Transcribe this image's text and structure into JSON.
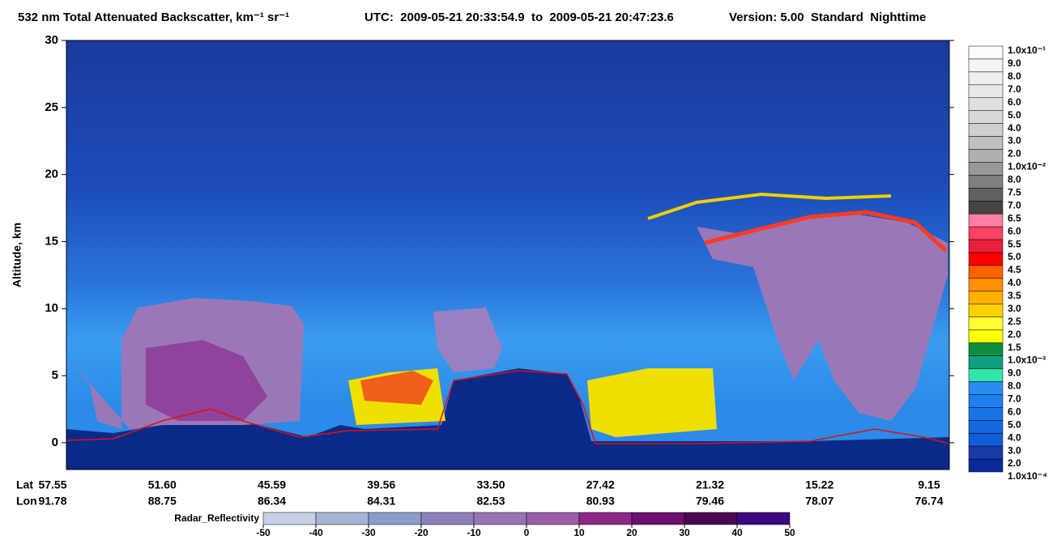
{
  "chart_data": {
    "type": "heatmap",
    "title": "532 nm Total Attenuated Backscatter, km⁻¹ sr⁻¹",
    "time_range": "UTC:  2009-05-21 20:33:54.9  to  2009-05-21 20:47:23.6",
    "version": "Version: 5.00  Standard  Nighttime",
    "ylabel": "Altitude, km",
    "ylim": [
      -2,
      30
    ],
    "yticks": [
      0,
      5,
      10,
      15,
      20,
      25,
      30
    ],
    "lat_label": "Lat",
    "lon_label": "Lon",
    "lat": [
      "57.55",
      "51.60",
      "45.59",
      "39.56",
      "33.50",
      "27.42",
      "21.32",
      "15.22",
      "9.15"
    ],
    "lon": [
      "91.78",
      "88.75",
      "86.34",
      "84.31",
      "82.53",
      "80.93",
      "79.46",
      "78.07",
      "76.74"
    ],
    "colorbar": {
      "labels": [
        "1.0x10⁻¹",
        "9.0",
        "8.0",
        "7.0",
        "6.0",
        "5.0",
        "4.0",
        "3.0",
        "2.0",
        "1.0x10⁻²",
        "8.0",
        "7.5",
        "7.0",
        "6.5",
        "6.0",
        "5.5",
        "5.0",
        "4.5",
        "4.0",
        "3.5",
        "3.0",
        "2.5",
        "2.0",
        "1.5",
        "1.0x10⁻³",
        "9.0",
        "8.0",
        "7.0",
        "6.0",
        "5.0",
        "4.0",
        "3.0",
        "2.0",
        "1.0x10⁻⁴"
      ],
      "colors": [
        "#fbfbfb",
        "#f4f4f4",
        "#eeeeee",
        "#e8e8e8",
        "#e0e0e0",
        "#d8d8d8",
        "#cfcfcf",
        "#c0c0c0",
        "#b0b0b0",
        "#989898",
        "#808080",
        "#606060",
        "#444444",
        "#ff80a0",
        "#ff4060",
        "#e8203c",
        "#ff0000",
        "#ff6000",
        "#ff9000",
        "#ffb000",
        "#ffd000",
        "#ffff30",
        "#ffff00",
        "#0a9040",
        "#10a080",
        "#2de8a8",
        "#2a8cf0",
        "#1e80ee",
        "#1a74e6",
        "#1668de",
        "#125cd6",
        "#1a3aa8",
        "#0a2a9a"
      ]
    },
    "radar_colorbar": {
      "label": "Radar_Reflectivity",
      "ticks": [
        -50,
        -40,
        -30,
        -20,
        -10,
        0,
        10,
        20,
        30,
        40,
        50
      ],
      "colors": [
        "#c4d0e4",
        "#a4b4d4",
        "#8c9cc8",
        "#8e80bc",
        "#9874b4",
        "#9a5ea8",
        "#8c2888",
        "#6a1070",
        "#4a0850",
        "#3a0880"
      ]
    }
  }
}
